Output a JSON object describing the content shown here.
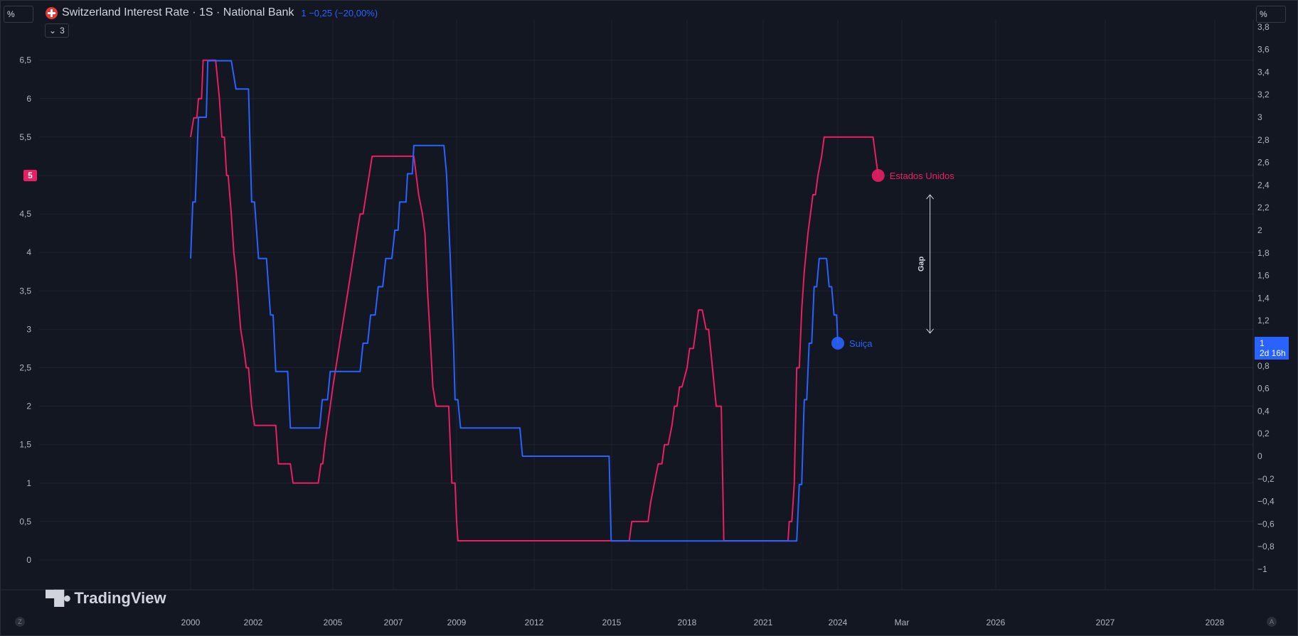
{
  "header": {
    "scale_left": "%",
    "scale_right": "%",
    "title": "Switzerland Interest Rate · 1S · National Bank",
    "value_text": "1 −0,25 (−20,00%)",
    "collapse_count": "3"
  },
  "watermark": "TradingView",
  "corner_left": "Z",
  "corner_right": "A",
  "chart_data": {
    "type": "line",
    "x_ticks": [
      "2000",
      "2002",
      "2005",
      "2007",
      "2009",
      "2012",
      "2015",
      "2018",
      "2021",
      "2024",
      "Mar",
      "2026",
      "2027",
      "2028"
    ],
    "left_axis": {
      "ticks": [
        "0",
        "0,5",
        "1",
        "1,5",
        "2",
        "2,5",
        "3",
        "3,5",
        "4",
        "4,5",
        "5,5",
        "6",
        "6,5"
      ],
      "range": [
        -0.4,
        7.1
      ],
      "badge": "5"
    },
    "right_axis": {
      "ticks": [
        "−1",
        "−0,8",
        "−0,6",
        "−0,4",
        "−0,2",
        "0",
        "0,2",
        "0,4",
        "0,6",
        "0,8",
        "1,2",
        "1,4",
        "1,6",
        "1,8",
        "2",
        "2,2",
        "2,4",
        "2,6",
        "2,8",
        "3",
        "3,2",
        "3,4",
        "3,6",
        "3,8"
      ],
      "range": [
        -1.15,
        3.85
      ],
      "badge_value": "1",
      "badge_countdown": "2d 16h"
    },
    "series": [
      {
        "name": "Estados Unidos",
        "axis": "left",
        "color": "#e91e63",
        "points": [
          [
            2000.0,
            5.5
          ],
          [
            2000.1,
            5.75
          ],
          [
            2000.2,
            5.75
          ],
          [
            2000.25,
            6.0
          ],
          [
            2000.35,
            6.0
          ],
          [
            2000.4,
            6.5
          ],
          [
            2000.8,
            6.5
          ],
          [
            2000.92,
            6.0
          ],
          [
            2001.0,
            5.5
          ],
          [
            2001.08,
            5.5
          ],
          [
            2001.15,
            5.0
          ],
          [
            2001.2,
            5.0
          ],
          [
            2001.3,
            4.5
          ],
          [
            2001.38,
            4.0
          ],
          [
            2001.45,
            3.75
          ],
          [
            2001.5,
            3.5
          ],
          [
            2001.6,
            3.0
          ],
          [
            2001.7,
            2.75
          ],
          [
            2001.78,
            2.5
          ],
          [
            2001.85,
            2.5
          ],
          [
            2001.95,
            2.0
          ],
          [
            2002.05,
            1.75
          ],
          [
            2002.85,
            1.75
          ],
          [
            2002.95,
            1.25
          ],
          [
            2003.4,
            1.25
          ],
          [
            2003.5,
            1.0
          ],
          [
            2004.45,
            1.0
          ],
          [
            2004.55,
            1.25
          ],
          [
            2004.62,
            1.25
          ],
          [
            2004.7,
            1.5
          ],
          [
            2004.8,
            1.75
          ],
          [
            2004.9,
            2.0
          ],
          [
            2005.0,
            2.25
          ],
          [
            2005.1,
            2.5
          ],
          [
            2005.2,
            2.75
          ],
          [
            2005.3,
            3.0
          ],
          [
            2005.4,
            3.25
          ],
          [
            2005.5,
            3.5
          ],
          [
            2005.6,
            3.75
          ],
          [
            2005.7,
            4.0
          ],
          [
            2005.8,
            4.25
          ],
          [
            2005.9,
            4.5
          ],
          [
            2006.0,
            4.5
          ],
          [
            2006.1,
            4.75
          ],
          [
            2006.2,
            5.0
          ],
          [
            2006.3,
            5.25
          ],
          [
            2006.4,
            5.25
          ],
          [
            2006.5,
            5.25
          ],
          [
            2007.65,
            5.25
          ],
          [
            2007.8,
            4.75
          ],
          [
            2007.92,
            4.5
          ],
          [
            2008.0,
            4.25
          ],
          [
            2008.08,
            3.5
          ],
          [
            2008.15,
            3.0
          ],
          [
            2008.25,
            2.25
          ],
          [
            2008.35,
            2.0
          ],
          [
            2008.75,
            2.0
          ],
          [
            2008.8,
            1.5
          ],
          [
            2008.85,
            1.0
          ],
          [
            2008.95,
            1.0
          ],
          [
            2009.0,
            0.5
          ],
          [
            2009.05,
            0.25
          ],
          [
            2015.7,
            0.25
          ],
          [
            2015.8,
            0.5
          ],
          [
            2016.45,
            0.5
          ],
          [
            2016.55,
            0.75
          ],
          [
            2016.7,
            1.0
          ],
          [
            2016.85,
            1.25
          ],
          [
            2017.0,
            1.25
          ],
          [
            2017.1,
            1.5
          ],
          [
            2017.25,
            1.5
          ],
          [
            2017.4,
            1.75
          ],
          [
            2017.5,
            2.0
          ],
          [
            2017.6,
            2.0
          ],
          [
            2017.7,
            2.25
          ],
          [
            2017.8,
            2.25
          ],
          [
            2018.0,
            2.5
          ],
          [
            2018.1,
            2.75
          ],
          [
            2018.25,
            2.75
          ],
          [
            2018.35,
            3.0
          ],
          [
            2018.45,
            3.25
          ],
          [
            2018.6,
            3.25
          ],
          [
            2018.75,
            3.0
          ],
          [
            2018.85,
            3.0
          ],
          [
            2019.0,
            2.5
          ],
          [
            2019.15,
            2.0
          ],
          [
            2019.35,
            2.0
          ],
          [
            2019.45,
            0.25
          ],
          [
            2022.0,
            0.25
          ],
          [
            2022.05,
            0.5
          ],
          [
            2022.15,
            0.5
          ],
          [
            2022.25,
            1.0
          ],
          [
            2022.35,
            2.5
          ],
          [
            2022.45,
            2.5
          ],
          [
            2022.55,
            3.25
          ],
          [
            2022.65,
            3.75
          ],
          [
            2022.8,
            4.25
          ],
          [
            2022.9,
            4.5
          ],
          [
            2023.0,
            4.75
          ],
          [
            2023.1,
            4.75
          ],
          [
            2023.2,
            5.0
          ],
          [
            2023.35,
            5.25
          ],
          [
            2023.45,
            5.5
          ],
          [
            2024.55,
            5.5
          ],
          [
            2024.63,
            5.0
          ]
        ]
      },
      {
        "name": "Suiça",
        "axis": "right",
        "color": "#2962ff",
        "points": [
          [
            2000.0,
            1.75
          ],
          [
            2000.07,
            2.25
          ],
          [
            2000.15,
            2.25
          ],
          [
            2000.25,
            3.0
          ],
          [
            2000.5,
            3.0
          ],
          [
            2000.55,
            3.5
          ],
          [
            2001.3,
            3.5
          ],
          [
            2001.45,
            3.25
          ],
          [
            2001.85,
            3.25
          ],
          [
            2001.95,
            2.25
          ],
          [
            2002.05,
            2.25
          ],
          [
            2002.2,
            1.75
          ],
          [
            2002.5,
            1.75
          ],
          [
            2002.65,
            1.25
          ],
          [
            2002.75,
            1.25
          ],
          [
            2002.85,
            0.75
          ],
          [
            2003.3,
            0.75
          ],
          [
            2003.4,
            0.25
          ],
          [
            2004.5,
            0.25
          ],
          [
            2004.6,
            0.5
          ],
          [
            2004.8,
            0.5
          ],
          [
            2004.9,
            0.75
          ],
          [
            2005.9,
            0.75
          ],
          [
            2006.0,
            1.0
          ],
          [
            2006.15,
            1.0
          ],
          [
            2006.25,
            1.25
          ],
          [
            2006.4,
            1.25
          ],
          [
            2006.5,
            1.5
          ],
          [
            2006.65,
            1.5
          ],
          [
            2006.75,
            1.75
          ],
          [
            2006.95,
            1.75
          ],
          [
            2007.05,
            2.0
          ],
          [
            2007.15,
            2.0
          ],
          [
            2007.2,
            2.25
          ],
          [
            2007.4,
            2.25
          ],
          [
            2007.45,
            2.5
          ],
          [
            2007.6,
            2.5
          ],
          [
            2007.65,
            2.75
          ],
          [
            2008.6,
            2.75
          ],
          [
            2008.68,
            2.5
          ],
          [
            2008.8,
            1.75
          ],
          [
            2008.9,
            1.0
          ],
          [
            2008.95,
            0.5
          ],
          [
            2009.05,
            0.5
          ],
          [
            2009.15,
            0.25
          ],
          [
            2011.45,
            0.25
          ],
          [
            2011.55,
            0.0
          ],
          [
            2014.9,
            0.0
          ],
          [
            2014.98,
            -0.75
          ],
          [
            2022.35,
            -0.75
          ],
          [
            2022.45,
            -0.25
          ],
          [
            2022.55,
            -0.25
          ],
          [
            2022.65,
            0.5
          ],
          [
            2022.75,
            0.5
          ],
          [
            2022.85,
            1.0
          ],
          [
            2022.95,
            1.0
          ],
          [
            2023.05,
            1.5
          ],
          [
            2023.15,
            1.5
          ],
          [
            2023.25,
            1.75
          ],
          [
            2023.55,
            1.75
          ],
          [
            2023.65,
            1.5
          ],
          [
            2023.75,
            1.5
          ],
          [
            2023.85,
            1.25
          ],
          [
            2023.95,
            1.25
          ],
          [
            2024.0,
            1.0
          ]
        ]
      }
    ],
    "end_labels": [
      {
        "series": "Estados Unidos",
        "text": "Estados Unidos"
      },
      {
        "series": "Suiça",
        "text": "Suiça"
      }
    ],
    "annotation": {
      "text": "Gap",
      "from_left_value": 4.75,
      "to_left_value": 2.95,
      "at_x": 2025.3
    },
    "colors": {
      "bg": "#131722",
      "grid": "#1e222d",
      "us": "#e91e63",
      "ch": "#2962ff"
    }
  }
}
